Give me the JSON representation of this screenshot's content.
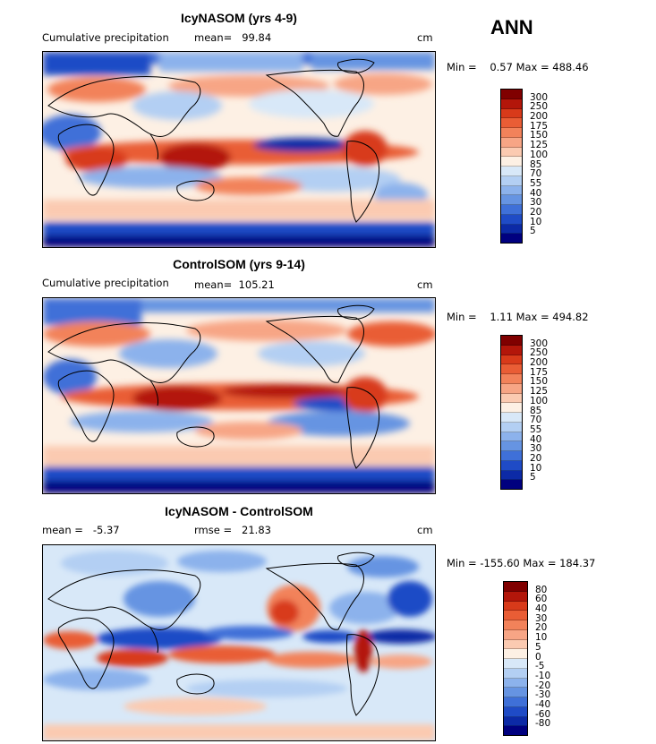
{
  "season": "ANN",
  "panels": [
    {
      "id": "p1",
      "title": "IcyNASOM (yrs 4-9)",
      "left_text": "Cumulative precipitation",
      "middle_text": "mean=   99.84",
      "unit": "cm",
      "minmax": "Min =    0.57 Max = 488.46",
      "levels": [
        "300",
        "250",
        "200",
        "175",
        "150",
        "125",
        "100",
        "85",
        "70",
        "55",
        "40",
        "30",
        "20",
        "10",
        "5"
      ],
      "colors": [
        "#800000",
        "#b3160a",
        "#d83a1a",
        "#e95d35",
        "#f2825a",
        "#f7a585",
        "#fbcab1",
        "#fdf0e4",
        "#d8e8f8",
        "#b3cff3",
        "#8cb2ec",
        "#6694e2",
        "#3f70d8",
        "#1f4bc6",
        "#0c2aa6",
        "#00007f"
      ]
    },
    {
      "id": "p2",
      "title": "ControlSOM (yrs 9-14)",
      "left_text": "Cumulative precipitation",
      "middle_text": "mean=  105.21",
      "unit": "cm",
      "minmax": "Min =    1.11 Max = 494.82",
      "levels": [
        "300",
        "250",
        "200",
        "175",
        "150",
        "125",
        "100",
        "85",
        "70",
        "55",
        "40",
        "30",
        "20",
        "10",
        "5"
      ],
      "colors": [
        "#800000",
        "#b3160a",
        "#d83a1a",
        "#e95d35",
        "#f2825a",
        "#f7a585",
        "#fbcab1",
        "#fdf0e4",
        "#d8e8f8",
        "#b3cff3",
        "#8cb2ec",
        "#6694e2",
        "#3f70d8",
        "#1f4bc6",
        "#0c2aa6",
        "#00007f"
      ]
    },
    {
      "id": "p3",
      "title": "IcyNASOM - ControlSOM",
      "left_text": "mean =   -5.37",
      "middle_text": "rmse =   21.83",
      "unit": "cm",
      "minmax": "Min = -155.60 Max = 184.37",
      "levels": [
        "80",
        "60",
        "40",
        "30",
        "20",
        "10",
        "5",
        "0",
        "-5",
        "-10",
        "-20",
        "-30",
        "-40",
        "-60",
        "-80"
      ],
      "colors": [
        "#800000",
        "#b3160a",
        "#d83a1a",
        "#e95d35",
        "#f2825a",
        "#f7a585",
        "#fbcab1",
        "#fdf0e4",
        "#d8e8f8",
        "#b3cff3",
        "#8cb2ec",
        "#6694e2",
        "#3f70d8",
        "#1f4bc6",
        "#0c2aa6",
        "#00007f"
      ]
    }
  ]
}
